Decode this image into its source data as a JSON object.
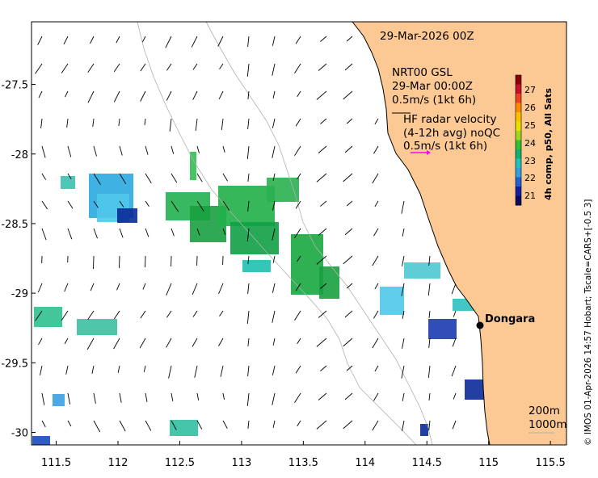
{
  "map": {
    "title_time": "29-Mar-2026 00Z",
    "model_label_1": "NRT00 GSL",
    "model_label_2": "29-Mar 00:00Z",
    "model_scale": "0.5m/s (1kt 6h)",
    "radar_label_1": "HF radar velocity",
    "radar_label_2": "(4-12h avg) noQC",
    "radar_scale": "0.5m/s (1kt 6h)",
    "town_name": "Dongara",
    "contour_200": "200m",
    "contour_1000": "1000m",
    "credit": "© IMOS 01-Apr-2026 14:57 Hobart; Tscale=CARS+[-0.5 3]",
    "colorbar_title": "4h comp, p50, All Sats",
    "colorbar_ticks": [
      "27",
      "26",
      "25",
      "24",
      "23",
      "22",
      "21"
    ],
    "x_ticks": [
      "111.5",
      "112",
      "112.5",
      "113",
      "113.5",
      "114",
      "114.5",
      "115",
      "115.5"
    ],
    "y_ticks": [
      "-27.5",
      "-28",
      "-28.5",
      "-29",
      "-29.5",
      "-30"
    ],
    "lon_range": [
      111.3,
      115.63
    ],
    "lat_range": [
      -30.09,
      -27.05
    ],
    "town_location": {
      "lon": 114.93,
      "lat": -29.27
    },
    "colors": {
      "land": "#fcc893",
      "ocean": "#ffffff",
      "radar_arrow": "#ff00ff",
      "arrow": "#000000"
    }
  }
}
